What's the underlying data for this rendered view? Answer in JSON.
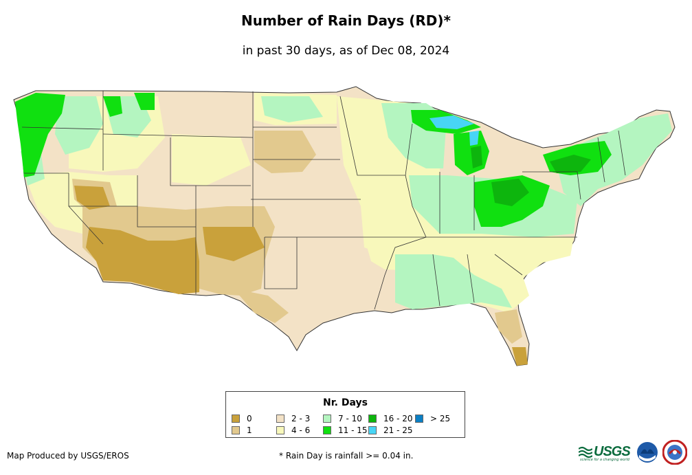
{
  "title": "Number of Rain Days (RD)*",
  "subtitle": "in past 30 days, as of Dec 08, 2024",
  "legend": {
    "title": "Nr. Days",
    "items": [
      {
        "label": "0",
        "color": "#c9a13b"
      },
      {
        "label": "1",
        "color": "#e2c98e"
      },
      {
        "label": "2 - 3",
        "color": "#f3e2c6"
      },
      {
        "label": "4 - 6",
        "color": "#f8f8bb"
      },
      {
        "label": "7 - 10",
        "color": "#b4f5c0"
      },
      {
        "label": "11 - 15",
        "color": "#10e010"
      },
      {
        "label": "16 - 20",
        "color": "#0db50d"
      },
      {
        "label": "21 - 25",
        "color": "#48d5f5"
      },
      {
        "label": "> 25",
        "color": "#0b7fc4"
      }
    ]
  },
  "credit": "Map Produced by USGS/EROS",
  "footnote": "* Rain Day is rainfall >= 0.04 in.",
  "logos": {
    "usgs_text": "USGS",
    "usgs_tagline": "science for a changing world",
    "noaa_icon": "noaa-logo-icon",
    "nws_icon": "national-weather-service-logo-icon"
  }
}
